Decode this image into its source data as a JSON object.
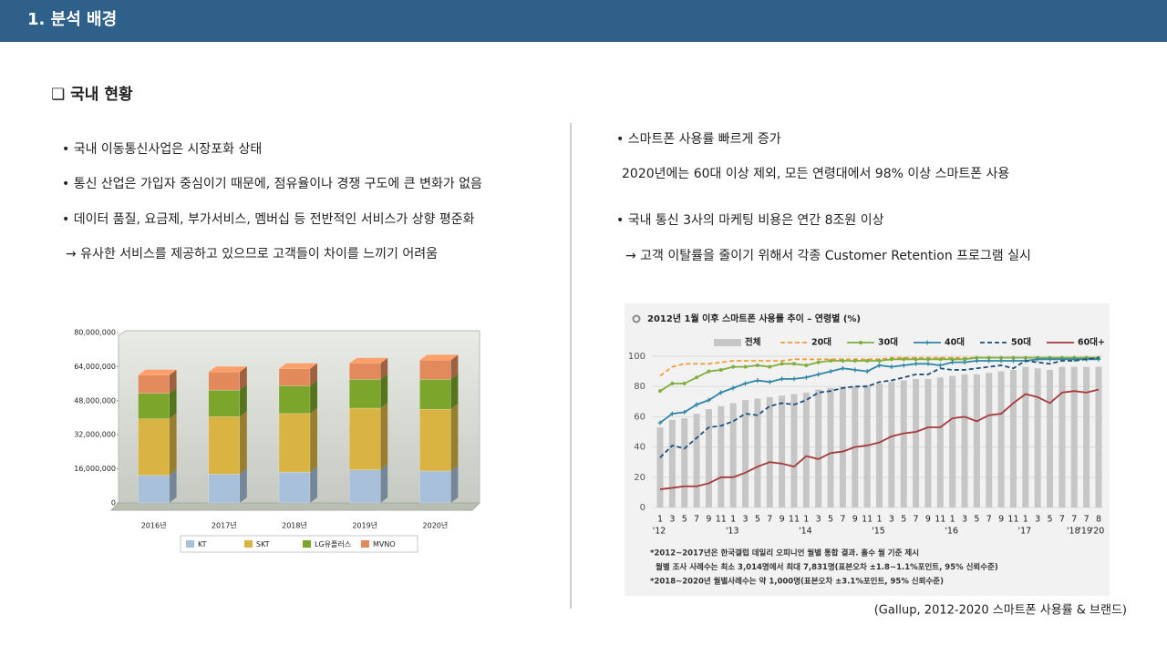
{
  "header": {
    "title": "1. 분석 배경"
  },
  "section": {
    "title": "❏ 국내 현황"
  },
  "left_bullets": [
    "• 국내 이동통신사업은 시장포화 상태",
    "• 통신 산업은 가입자 중심이기 때문에, 점유율이나 경쟁 구도에 큰 변화가 없음",
    "• 데이터 품질, 요금제, 부가서비스, 멤버십 등 전반적인 서비스가 상향 평준화",
    "→ 유사한 서비스를 제공하고 있으므로 고객들이 차이를 느끼기 어려움"
  ],
  "right_bullets": [
    "• 스마트폰 사용률 빠르게 증가",
    "2020년에는 60대 이상 제외, 모든 연령대에서 98% 이상 스마트폰 사용",
    "• 국내 통신 3사의 마케팅 비용은 연간 8조원 이상",
    "→ 고객 이탈률을 줄이기 위해서 각종 Customer Retention 프로그램 실시"
  ],
  "source": "(Gallup, 2012-2020 스마트폰 사용률 & 브랜드)",
  "chart_data": [
    {
      "type": "bar",
      "stacked": true,
      "categories": [
        "2016년",
        "2017년",
        "2018년",
        "2019년",
        "2020년"
      ],
      "series": [
        {
          "name": "KT",
          "color": "#a9c0da",
          "values": [
            13000000,
            13500000,
            14500000,
            15500000,
            15000000
          ]
        },
        {
          "name": "SKT",
          "color": "#d9b443",
          "values": [
            26500000,
            27000000,
            27500000,
            29000000,
            29000000
          ]
        },
        {
          "name": "LG유플러스",
          "color": "#7ba52b",
          "values": [
            12000000,
            12500000,
            13000000,
            13500000,
            14000000
          ]
        },
        {
          "name": "MVNO",
          "color": "#e38a5c",
          "values": [
            8500000,
            8500000,
            8000000,
            7500000,
            9000000
          ]
        }
      ],
      "ylim": [
        0,
        80000000
      ],
      "yticks": [
        0,
        {
          "value": 16000000,
          "label": "16,000,000"
        },
        {
          "value": 32000000,
          "label": "32,000,000"
        },
        {
          "value": 48000000,
          "label": "48,000,000"
        },
        {
          "value": 64000000,
          "label": "64,000,000"
        },
        {
          "value": 80000000,
          "label": "80,000,000"
        }
      ],
      "legend": "bottom"
    },
    {
      "type": "line",
      "title": "2012년 1월 이후 스마트폰 사용률 추이 – 연령별 (%)",
      "categories": [
        "1",
        "3",
        "5",
        "7",
        "9",
        "11",
        "1",
        "3",
        "5",
        "7",
        "9",
        "11",
        "1",
        "3",
        "5",
        "7",
        "9",
        "11",
        "1",
        "3",
        "5",
        "7",
        "9",
        "11",
        "1",
        "3",
        "5",
        "7",
        "9",
        "11",
        "1",
        "3",
        "5",
        "7",
        "7",
        "7",
        "8"
      ],
      "category_years": [
        "'12",
        null,
        null,
        null,
        null,
        null,
        "'13",
        null,
        null,
        null,
        null,
        null,
        "'14",
        null,
        null,
        null,
        null,
        null,
        "'15",
        null,
        null,
        null,
        null,
        null,
        "'16",
        null,
        null,
        null,
        null,
        null,
        "'17",
        null,
        null,
        null,
        "'18",
        "'19",
        "'20"
      ],
      "series": [
        {
          "name": "전체",
          "color": "#c6c6c6",
          "style": "bar",
          "values": [
            53,
            58,
            59,
            62,
            65,
            67,
            69,
            71,
            72,
            73,
            74,
            75,
            76,
            78,
            79,
            80,
            80,
            81,
            82,
            83,
            84,
            85,
            85,
            86,
            87,
            88,
            88,
            89,
            90,
            91,
            93,
            92,
            91,
            93,
            93,
            93,
            93
          ]
        },
        {
          "name": "20대",
          "color": "#f29b3b",
          "style": "dashed",
          "values": [
            87,
            93,
            95,
            95,
            95,
            96,
            97,
            97,
            97,
            97,
            97,
            98,
            98,
            98,
            98,
            98,
            98,
            98,
            98,
            99,
            99,
            99,
            99,
            99,
            99,
            99,
            99,
            99,
            99,
            99,
            99,
            99,
            99,
            99,
            99,
            99,
            99
          ]
        },
        {
          "name": "30대",
          "color": "#80ae3f",
          "style": "solid",
          "marker": "circle",
          "values": [
            77,
            82,
            82,
            86,
            90,
            91,
            93,
            93,
            94,
            93,
            95,
            95,
            94,
            96,
            97,
            97,
            97,
            97,
            97,
            98,
            98,
            98,
            98,
            98,
            98,
            98,
            99,
            99,
            99,
            99,
            99,
            99,
            99,
            99,
            99,
            99,
            99
          ]
        },
        {
          "name": "40대",
          "color": "#2f86a6",
          "style": "solid",
          "marker": "plus",
          "values": [
            56,
            62,
            63,
            68,
            71,
            76,
            79,
            82,
            84,
            83,
            85,
            85,
            86,
            88,
            90,
            92,
            91,
            90,
            94,
            93,
            94,
            95,
            95,
            94,
            96,
            96,
            97,
            97,
            97,
            97,
            97,
            98,
            98,
            98,
            98,
            98,
            98
          ]
        },
        {
          "name": "50대",
          "color": "#1f4e79",
          "style": "dashed",
          "values": [
            33,
            41,
            39,
            46,
            53,
            54,
            57,
            62,
            61,
            67,
            69,
            68,
            71,
            76,
            77,
            79,
            80,
            80,
            83,
            84,
            86,
            88,
            88,
            92,
            91,
            91,
            92,
            93,
            94,
            92,
            97,
            96,
            95,
            97,
            97,
            98,
            99
          ]
        },
        {
          "name": "60대+",
          "color": "#a63a3a",
          "style": "solid",
          "values": [
            12,
            13,
            14,
            14,
            16,
            20,
            20,
            23,
            27,
            30,
            29,
            27,
            34,
            32,
            36,
            37,
            40,
            41,
            43,
            47,
            49,
            50,
            53,
            53,
            59,
            60,
            57,
            61,
            62,
            69,
            75,
            73,
            69,
            76,
            77,
            76,
            78
          ]
        }
      ],
      "ylim": [
        0,
        100
      ],
      "yticks": [
        0,
        20,
        40,
        60,
        80,
        100
      ],
      "grid": true,
      "legend": "top",
      "notes": [
        "*2012~2017년은 한국갤럽 데일리 오피니언 월별 통합 결과. 홀수 월 기준 제시",
        "월별 조사 사례수는 최소 3,014명에서 최대 7,831명(표본오차 ±1.8~1.1%포인트, 95% 신뢰수준)",
        "*2018~2020년 월별사례수는 약 1,000명(표본오차 ±3.1%포인트, 95% 신뢰수준)"
      ]
    }
  ]
}
